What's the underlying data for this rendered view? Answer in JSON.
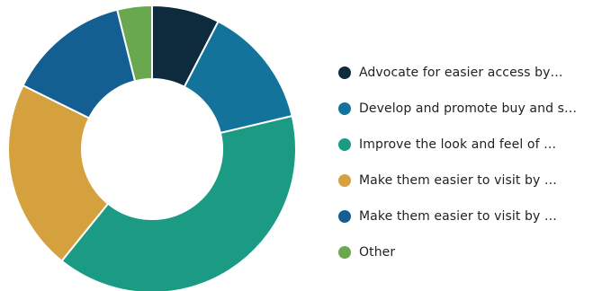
{
  "chart_data": {
    "type": "pie",
    "variant": "donut",
    "legend_position": "right",
    "categories": [
      "Advocate for easier access by…",
      "Develop and promote buy and s…",
      "Improve the look and feel of …",
      "Make them easier to visit by …",
      "Make them easier to visit by …",
      "Other"
    ],
    "values": [
      7.6,
      13.7,
      39.5,
      21.5,
      13.8,
      3.9
    ],
    "colors": [
      "#0e2a3d",
      "#13739a",
      "#1b9b84",
      "#d4a13e",
      "#135f92",
      "#6aa84f"
    ]
  }
}
